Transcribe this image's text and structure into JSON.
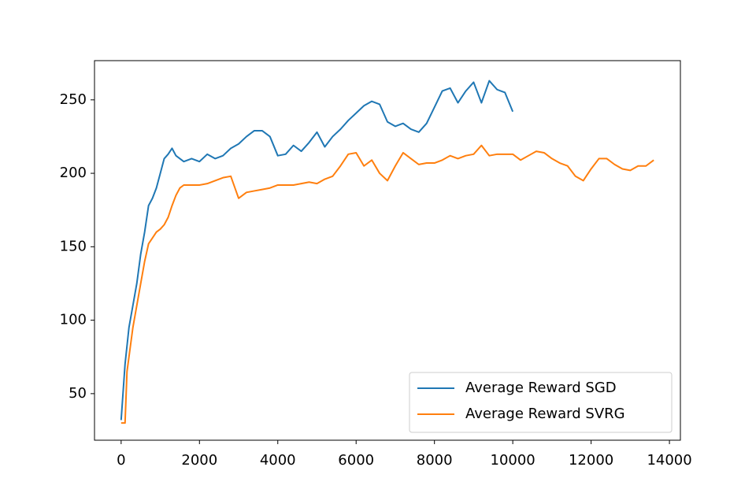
{
  "chart_data": {
    "type": "line",
    "series": [
      {
        "name": "Average Reward SGD",
        "color": "#1f77b4",
        "x": [
          0,
          100,
          200,
          300,
          400,
          500,
          600,
          700,
          800,
          900,
          1000,
          1100,
          1200,
          1300,
          1400,
          1600,
          1800,
          2000,
          2200,
          2400,
          2600,
          2800,
          3000,
          3200,
          3400,
          3600,
          3800,
          4000,
          4200,
          4400,
          4600,
          4800,
          5000,
          5200,
          5400,
          5600,
          5800,
          6000,
          6200,
          6400,
          6600,
          6800,
          7000,
          7200,
          7400,
          7600,
          7800,
          8000,
          8200,
          8400,
          8600,
          8800,
          9000,
          9200,
          9400,
          9600,
          9800,
          10000
        ],
        "values": [
          32,
          70,
          95,
          110,
          125,
          145,
          160,
          178,
          183,
          190,
          200,
          210,
          213,
          217,
          212,
          208,
          210,
          208,
          213,
          210,
          212,
          217,
          220,
          225,
          229,
          229,
          225,
          212,
          213,
          219,
          215,
          221,
          228,
          218,
          225,
          230,
          236,
          241,
          246,
          249,
          247,
          235,
          232,
          234,
          230,
          228,
          234,
          245,
          256,
          258,
          248,
          256,
          262,
          248,
          263,
          257,
          255,
          242
        ]
      },
      {
        "name": "Average Reward SVRG",
        "color": "#ff7f0e",
        "x": [
          0,
          100,
          150,
          300,
          400,
          500,
          600,
          700,
          800,
          900,
          1000,
          1100,
          1200,
          1300,
          1400,
          1500,
          1600,
          1800,
          2000,
          2200,
          2400,
          2600,
          2800,
          3000,
          3200,
          3400,
          3600,
          3800,
          4000,
          4400,
          4800,
          5000,
          5200,
          5400,
          5600,
          5800,
          6000,
          6200,
          6400,
          6600,
          6800,
          7000,
          7200,
          7400,
          7600,
          7800,
          8000,
          8200,
          8400,
          8600,
          8800,
          9000,
          9200,
          9400,
          9600,
          9800,
          10000,
          10200,
          10400,
          10600,
          10800,
          11000,
          11200,
          11400,
          11600,
          11800,
          12000,
          12200,
          12400,
          12600,
          12800,
          13000,
          13200,
          13400,
          13600
        ],
        "values": [
          30,
          30,
          65,
          95,
          110,
          125,
          140,
          152,
          156,
          160,
          162,
          165,
          170,
          178,
          185,
          190,
          192,
          192,
          192,
          193,
          195,
          197,
          198,
          183,
          187,
          188,
          189,
          190,
          192,
          192,
          194,
          193,
          196,
          198,
          205,
          213,
          214,
          205,
          209,
          200,
          195,
          205,
          214,
          210,
          206,
          207,
          207,
          209,
          212,
          210,
          212,
          213,
          219,
          212,
          213,
          213,
          213,
          209,
          212,
          215,
          214,
          210,
          207,
          205,
          198,
          195,
          203,
          210,
          210,
          206,
          203,
          202,
          205,
          205,
          209
        ]
      }
    ],
    "xlim": [
      -680,
      14280
    ],
    "xticks": [
      0,
      2000,
      4000,
      6000,
      8000,
      10000,
      12000,
      14000
    ],
    "ylim": [
      18.3,
      276.7
    ],
    "yticks": [
      50,
      100,
      150,
      200,
      250
    ],
    "grid": false,
    "legend": "lower right"
  }
}
